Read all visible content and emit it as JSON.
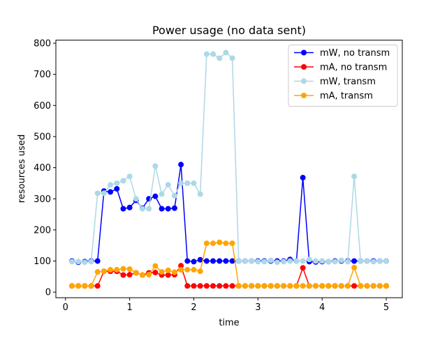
{
  "chart_data": {
    "type": "line",
    "title": "Power usage (no data sent)",
    "xlabel": "time",
    "ylabel": "resources used",
    "xlim": [
      -0.15,
      5.25
    ],
    "ylim": [
      -18,
      810
    ],
    "xticks": [
      0,
      1,
      2,
      3,
      4,
      5
    ],
    "yticks": [
      0,
      100,
      200,
      300,
      400,
      500,
      600,
      700,
      800
    ],
    "grid": false,
    "legend_position": "top-right",
    "x": [
      0.1,
      0.2,
      0.3,
      0.4,
      0.5,
      0.6,
      0.7,
      0.8,
      0.9,
      1.0,
      1.1,
      1.2,
      1.3,
      1.4,
      1.5,
      1.6,
      1.7,
      1.8,
      1.9,
      2.0,
      2.1,
      2.2,
      2.3,
      2.4,
      2.5,
      2.6,
      2.7,
      2.8,
      2.9,
      3.0,
      3.1,
      3.2,
      3.3,
      3.4,
      3.5,
      3.6,
      3.7,
      3.8,
      3.9,
      4.0,
      4.1,
      4.2,
      4.3,
      4.4,
      4.5,
      4.6,
      4.7,
      4.8,
      4.9,
      5.0
    ],
    "series": [
      {
        "name": "mW, no transm",
        "color": "#0000ff",
        "values": [
          100,
          96,
          98,
          100,
          100,
          325,
          322,
          332,
          268,
          272,
          295,
          270,
          300,
          308,
          268,
          268,
          270,
          410,
          100,
          98,
          104,
          100,
          100,
          100,
          100,
          100,
          100,
          100,
          100,
          100,
          100,
          100,
          100,
          100,
          105,
          100,
          368,
          98,
          97,
          98,
          98,
          100,
          100,
          100,
          100,
          100,
          100,
          100,
          100,
          100
        ]
      },
      {
        "name": "mA, no transm",
        "color": "#ff0000",
        "values": [
          20,
          20,
          20,
          20,
          20,
          67,
          67,
          67,
          55,
          56,
          62,
          55,
          62,
          63,
          55,
          55,
          56,
          85,
          20,
          20,
          20,
          20,
          20,
          20,
          20,
          20,
          20,
          20,
          20,
          20,
          20,
          20,
          20,
          20,
          20,
          20,
          78,
          20,
          20,
          20,
          20,
          20,
          20,
          20,
          20,
          20,
          20,
          20,
          20,
          20
        ]
      },
      {
        "name": "mW, transm",
        "color": "#add8e6",
        "values": [
          98,
          98,
          96,
          98,
          318,
          318,
          345,
          350,
          358,
          372,
          300,
          268,
          268,
          405,
          315,
          345,
          310,
          350,
          350,
          350,
          315,
          765,
          765,
          752,
          770,
          752,
          100,
          100,
          100,
          98,
          98,
          102,
          96,
          98,
          100,
          100,
          100,
          105,
          100,
          100,
          98,
          98,
          102,
          98,
          372,
          100,
          100,
          98,
          100,
          100
        ]
      },
      {
        "name": "mA, transm",
        "color": "#ffa500",
        "values": [
          20,
          20,
          20,
          20,
          65,
          67,
          72,
          72,
          75,
          74,
          62,
          55,
          56,
          84,
          65,
          70,
          64,
          72,
          72,
          72,
          67,
          157,
          157,
          160,
          157,
          157,
          20,
          20,
          20,
          20,
          20,
          20,
          20,
          20,
          20,
          20,
          20,
          20,
          20,
          20,
          20,
          20,
          20,
          20,
          79,
          20,
          20,
          20,
          20,
          20
        ]
      }
    ]
  }
}
